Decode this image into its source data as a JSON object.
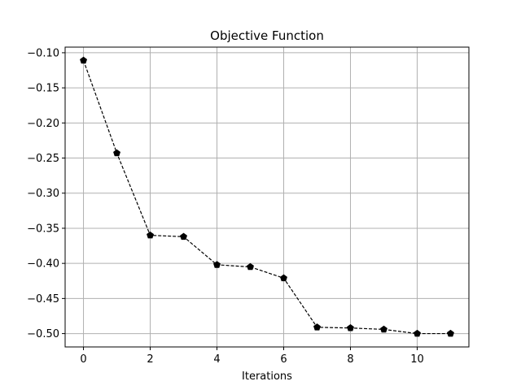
{
  "chart_data": {
    "type": "line",
    "title": "Objective Function",
    "xlabel": "Iterations",
    "ylabel": "",
    "x": [
      0,
      1,
      2,
      3,
      4,
      5,
      6,
      7,
      8,
      9,
      10,
      11
    ],
    "series": [
      {
        "values": [
          -0.111,
          -0.243,
          -0.36,
          -0.362,
          -0.402,
          -0.405,
          -0.421,
          -0.491,
          -0.492,
          -0.494,
          -0.5,
          -0.5
        ],
        "color": "#000000",
        "line_style": "dashed",
        "marker": "pentagon"
      }
    ],
    "xlim": [
      -0.55,
      11.55
    ],
    "ylim": [
      -0.519,
      -0.092
    ],
    "x_ticks": [
      0,
      2,
      4,
      6,
      8,
      10
    ],
    "x_tick_labels": [
      "0",
      "2",
      "4",
      "6",
      "8",
      "10"
    ],
    "y_ticks": [
      -0.1,
      -0.15,
      -0.2,
      -0.25,
      -0.3,
      -0.35,
      -0.4,
      -0.45,
      -0.5
    ],
    "y_tick_labels": [
      "−0.10",
      "−0.15",
      "−0.20",
      "−0.25",
      "−0.30",
      "−0.35",
      "−0.40",
      "−0.45",
      "−0.50"
    ],
    "grid": true,
    "grid_color": "#b0b0b0"
  }
}
